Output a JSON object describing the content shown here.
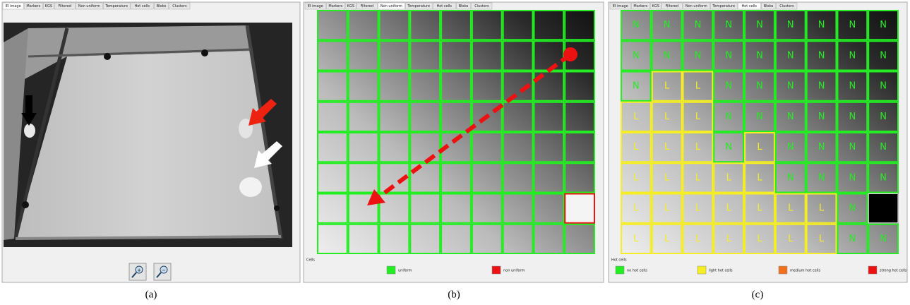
{
  "panel_a": {
    "tabs": [
      "IR image",
      "Markers",
      "KGS",
      "Filtered",
      "Non uniform",
      "Temperature",
      "Hot cells",
      "Blobs",
      "Clusters"
    ],
    "active_tab": 0,
    "caption": "(a)"
  },
  "panel_b": {
    "tabs": [
      "IR image",
      "Markers",
      "KGS",
      "Filtered",
      "Non uniform",
      "Temperature",
      "Hot cells",
      "Blobs",
      "Clusters"
    ],
    "active_tab": 4,
    "legend_title": "Cells",
    "legend": [
      {
        "label": "uniform",
        "color": "#22ee22"
      },
      {
        "label": "non uniform",
        "color": "#ee1111"
      }
    ],
    "caption": "(b)"
  },
  "panel_c": {
    "tabs": [
      "IR image",
      "Markers",
      "KGS",
      "Filtered",
      "Non uniform",
      "Temperature",
      "Hot cells",
      "Blobs",
      "Clusters"
    ],
    "active_tab": 6,
    "cells": [
      [
        "N",
        "N",
        "N",
        "N",
        "N",
        "N",
        "N",
        "N",
        "N"
      ],
      [
        "N",
        "N",
        "N",
        "N",
        "N",
        "N",
        "N",
        "N",
        "N"
      ],
      [
        "N",
        "L",
        "L",
        "N",
        "N",
        "N",
        "N",
        "N",
        "N"
      ],
      [
        "L",
        "L",
        "L",
        "N",
        "N",
        "N",
        "N",
        "N",
        "N"
      ],
      [
        "L",
        "L",
        "L",
        "N",
        "L",
        "N",
        "N",
        "N",
        "N"
      ],
      [
        "L",
        "L",
        "L",
        "L",
        "L",
        "N",
        "N",
        "N",
        "N"
      ],
      [
        "L",
        "L",
        "L",
        "L",
        "L",
        "L",
        "L",
        "N",
        null
      ],
      [
        "L",
        "L",
        "L",
        "L",
        "L",
        "L",
        "L",
        "N",
        "N"
      ]
    ],
    "legend_title": "Hot cells",
    "legend": [
      {
        "label": "no hot cells",
        "color": "#22ee22"
      },
      {
        "label": "light hot cells",
        "color": "#f4ee22"
      },
      {
        "label": "medium hot cells",
        "color": "#f07020"
      },
      {
        "label": "strong hot cells",
        "color": "#ee1111"
      }
    ],
    "caption": "(c)"
  }
}
